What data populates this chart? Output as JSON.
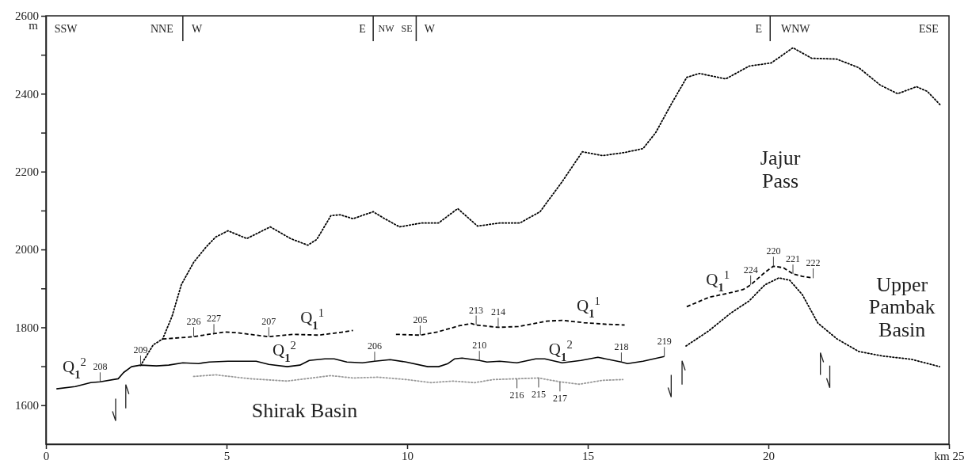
{
  "chart_data": {
    "type": "line",
    "xlim": [
      0,
      25
    ],
    "xticks": [
      0,
      5,
      10,
      15,
      20,
      {
        "value": 25,
        "label": "km 25"
      }
    ],
    "ylim": [
      1500,
      2600
    ],
    "yticks": [
      1600,
      {
        "value": 1700,
        "label": null
      },
      1800,
      {
        "value": 1900,
        "label": null
      },
      2000,
      {
        "value": 2100,
        "label": null
      },
      2200,
      {
        "value": 2300,
        "label": null
      },
      2400,
      {
        "value": 2500,
        "label": null
      },
      2600
    ],
    "ylabel": "m",
    "grid": false,
    "series": [
      {
        "color": "#000000",
        "line_style": "dotted",
        "x": [
          2.62,
          2.97,
          3.23,
          3.49,
          3.75,
          4.09,
          4.44,
          4.7,
          5.04,
          5.56,
          6.21,
          6.77,
          7.25,
          7.5,
          7.89,
          8.15,
          8.5,
          9.06,
          9.36,
          9.79,
          10.4,
          10.87,
          11.4,
          11.95,
          12.56,
          13.12,
          13.68,
          14.29,
          14.85,
          15.41,
          16.02,
          16.53,
          16.88,
          17.31,
          17.74,
          18.09,
          18.82,
          19.47,
          20.08,
          20.68,
          21.2,
          21.89,
          22.5,
          23.1,
          23.58,
          24.1,
          24.4,
          24.76
        ],
        "values": [
          1702,
          1755,
          1770,
          1828,
          1910,
          1967,
          2007,
          2032,
          2048,
          2028,
          2058,
          2028,
          2011,
          2026,
          2087,
          2089,
          2079,
          2097,
          2080,
          2058,
          2068,
          2068,
          2105,
          2060,
          2068,
          2068,
          2097,
          2174,
          2251,
          2241,
          2249,
          2259,
          2300,
          2373,
          2442,
          2452,
          2438,
          2471,
          2479,
          2518,
          2491,
          2489,
          2467,
          2422,
          2400,
          2418,
          2406,
          2371
        ]
      },
      {
        "color": "#000000",
        "line_style": "solid",
        "x": [
          0.29,
          0.81,
          1.24,
          1.5,
          2.0,
          2.15,
          2.37,
          2.62,
          3.06,
          3.4,
          3.79,
          4.22,
          4.52,
          5.04,
          5.82,
          6.17,
          6.68,
          7.03,
          7.29,
          7.72,
          7.98,
          8.33,
          8.76,
          9.1,
          9.53,
          9.97,
          10.57,
          10.87,
          11.13,
          11.31,
          11.52,
          12.0,
          12.21,
          12.56,
          13.04,
          13.56,
          13.81,
          14.29,
          14.81,
          15.28,
          15.93,
          16.1,
          16.53,
          17.12
        ],
        "values": [
          1642,
          1648,
          1658,
          1660,
          1668,
          1684,
          1699,
          1703,
          1701,
          1703,
          1709,
          1707,
          1711,
          1713,
          1713,
          1705,
          1699,
          1703,
          1715,
          1719,
          1719,
          1711,
          1709,
          1713,
          1717,
          1711,
          1699,
          1699,
          1707,
          1719,
          1721,
          1715,
          1711,
          1713,
          1709,
          1719,
          1719,
          1709,
          1715,
          1723,
          1711,
          1707,
          1713,
          1725
        ]
      },
      {
        "color": "#000000",
        "line_style": "dashed",
        "x": [
          3.23,
          4.09,
          4.65,
          4.96,
          5.3,
          6.17,
          6.86,
          7.55,
          8.07,
          8.5
        ],
        "values": [
          1770,
          1776,
          1784,
          1788,
          1786,
          1776,
          1782,
          1780,
          1786,
          1792
        ]
      },
      {
        "color": "#000000",
        "line_style": "dashed",
        "x": [
          9.69,
          10.36,
          10.83,
          11.44,
          11.78,
          11.91,
          12.52,
          13.08,
          13.86,
          14.29,
          14.89,
          15.5,
          16.02
        ],
        "values": [
          1782,
          1780,
          1788,
          1804,
          1810,
          1806,
          1800,
          1802,
          1816,
          1818,
          1812,
          1808,
          1806
        ]
      },
      {
        "color": "#000000",
        "line_style": "dashed",
        "x": [
          17.74,
          18.35,
          18.95,
          19.3,
          19.51,
          19.9,
          20.14,
          20.42,
          20.68,
          20.94,
          21.24
        ],
        "values": [
          1853,
          1877,
          1889,
          1897,
          1909,
          1941,
          1957,
          1953,
          1937,
          1931,
          1927
        ]
      },
      {
        "color": "#000000",
        "line_style": "dotted",
        "x": [
          17.72,
          18.35,
          18.95,
          19.47,
          19.9,
          20.29,
          20.59,
          20.94,
          21.37,
          21.89,
          22.5,
          23.19,
          23.96,
          24.74
        ],
        "values": [
          1752,
          1791,
          1836,
          1868,
          1909,
          1927,
          1921,
          1884,
          1811,
          1771,
          1738,
          1726,
          1718,
          1699
        ]
      },
      {
        "color": "#999999",
        "line_style": "dotted",
        "x": [
          4.09,
          4.7,
          5.65,
          6.68,
          7.89,
          8.5,
          9.19,
          9.97,
          10.66,
          11.26,
          11.87,
          12.39,
          13.04,
          13.64,
          14.23,
          14.77,
          15.41,
          15.97
        ],
        "values": [
          1674,
          1678,
          1668,
          1662,
          1676,
          1670,
          1672,
          1666,
          1658,
          1662,
          1658,
          1666,
          1668,
          1670,
          1660,
          1654,
          1664,
          1666
        ]
      }
    ],
    "annotations": [
      "SSW",
      "NNE",
      "W",
      "E",
      "NW",
      "SE",
      "W",
      "E",
      "WNW",
      "ESE",
      {
        "text": "208",
        "x": 1.5,
        "y": 1660
      },
      {
        "text": "209",
        "x": 2.62,
        "y": 1703
      },
      {
        "text": "206",
        "x": 9.1,
        "y": 1713
      },
      {
        "text": "210",
        "x": 12.0,
        "y": 1715
      },
      {
        "text": "218",
        "x": 15.93,
        "y": 1711
      },
      {
        "text": "219",
        "x": 17.12,
        "y": 1725
      },
      {
        "text": "226",
        "x": 4.09,
        "y": 1776
      },
      {
        "text": "227",
        "x": 4.65,
        "y": 1784
      },
      {
        "text": "207",
        "x": 6.17,
        "y": 1776
      },
      {
        "text": "205",
        "x": 10.36,
        "y": 1780
      },
      {
        "text": "213",
        "x": 11.91,
        "y": 1806
      },
      {
        "text": "214",
        "x": 12.52,
        "y": 1800
      },
      {
        "text": "224",
        "x": 19.51,
        "y": 1909
      },
      {
        "text": "220",
        "x": 20.14,
        "y": 1957
      },
      {
        "text": "221",
        "x": 20.68,
        "y": 1937
      },
      {
        "text": "222",
        "x": 21.24,
        "y": 1927
      },
      {
        "text": "216",
        "x": 13.04,
        "y": 1668
      },
      {
        "text": "215",
        "x": 13.64,
        "y": 1670
      },
      {
        "text": "217",
        "x": 14.23,
        "y": 1660
      },
      "Q$_{1}$$^{2}$",
      "Q$_{1}$$^{1}$",
      "Q$_{1}$$^{2}$",
      "Q$_{1}$$^{1}$",
      "Q$_{1}$$^{2}$",
      "Q$_{1}$$^{1}$",
      "Shirak Basin",
      "Jajur\nPass",
      "Upper\nPambak\nBasin"
    ]
  }
}
